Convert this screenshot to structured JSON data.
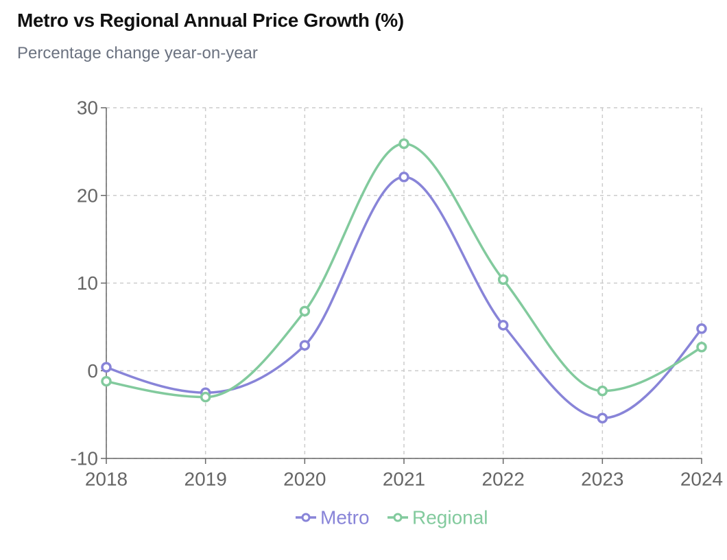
{
  "chart_data": {
    "type": "line",
    "title": "Metro vs Regional Annual Price Growth (%)",
    "subtitle": "Percentage change year-on-year",
    "categories": [
      "2018",
      "2019",
      "2020",
      "2021",
      "2022",
      "2023",
      "2024"
    ],
    "series": [
      {
        "name": "Metro",
        "color": "#8884d8",
        "values": [
          0.4,
          -2.5,
          2.9,
          22.1,
          5.2,
          -5.4,
          4.8
        ]
      },
      {
        "name": "Regional",
        "color": "#82ca9d",
        "values": [
          -1.2,
          -3.0,
          6.8,
          25.9,
          10.4,
          -2.3,
          2.7
        ]
      }
    ],
    "yticks": [
      "30",
      "20",
      "10",
      "0",
      "-10"
    ],
    "ylim": [
      -10,
      30
    ],
    "grid": true,
    "legend": "bottom-center",
    "xlabel": "",
    "ylabel": ""
  }
}
